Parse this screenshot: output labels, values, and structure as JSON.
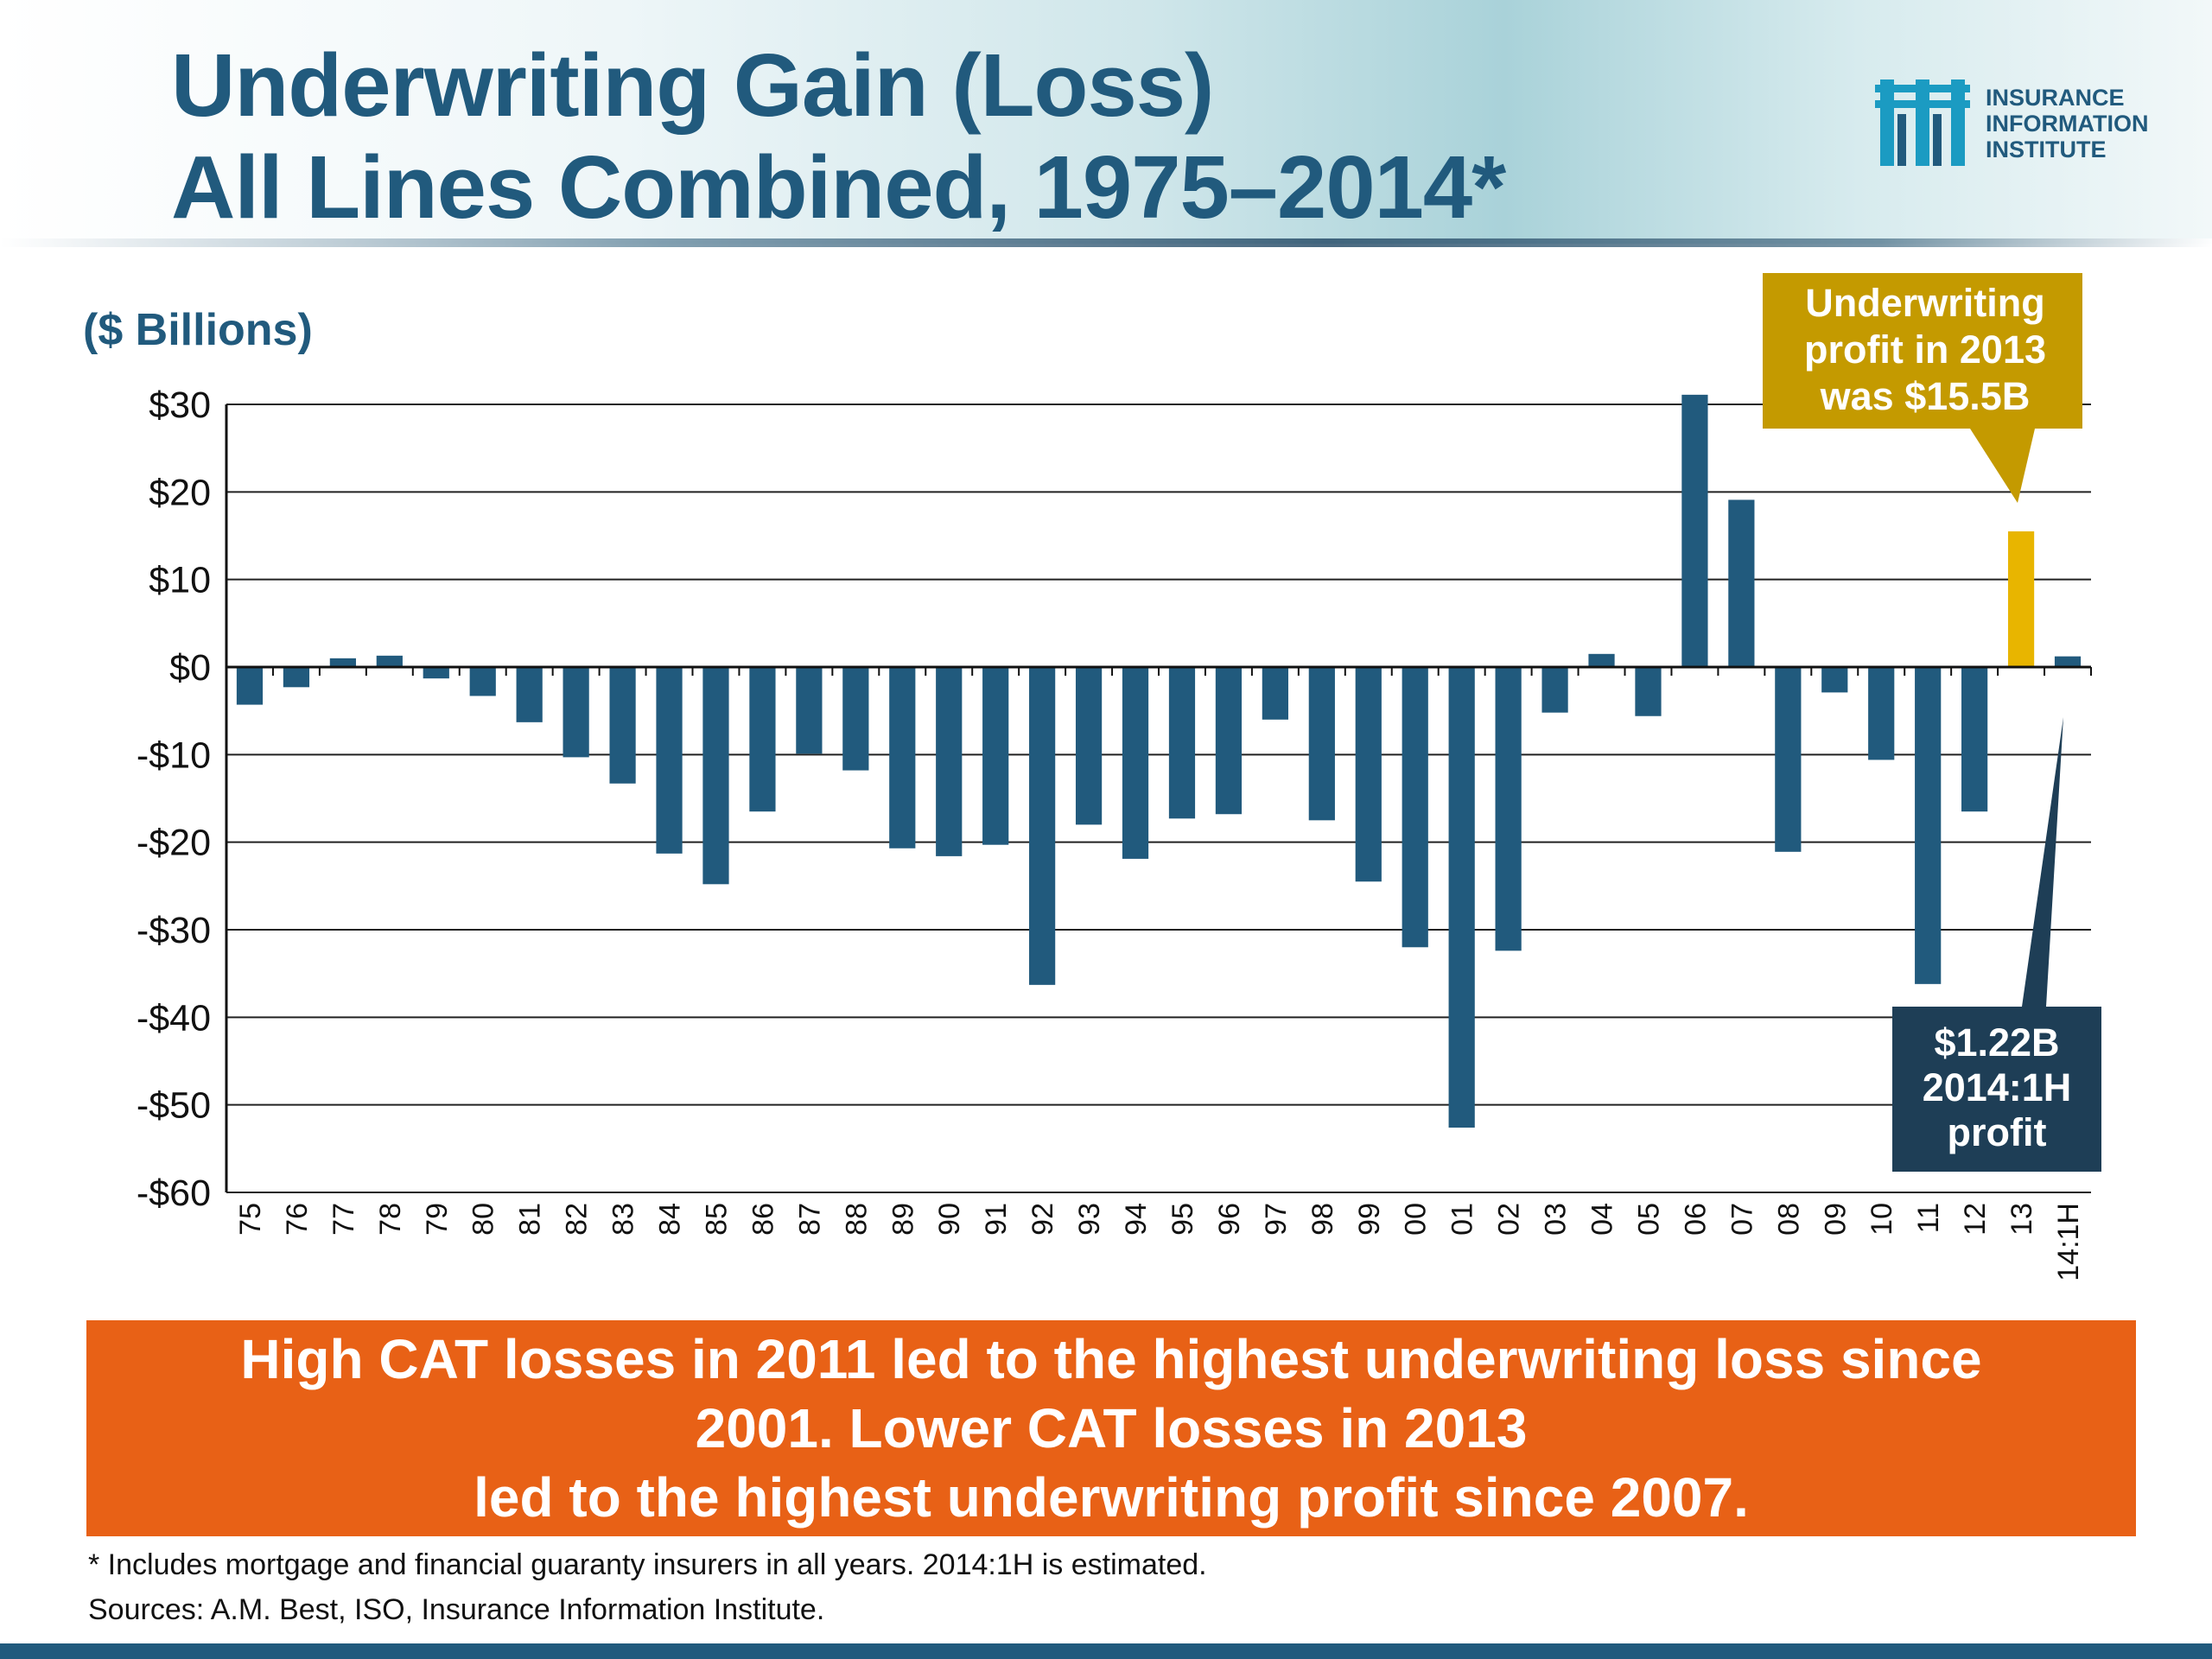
{
  "header": {
    "title_line1": "Underwriting Gain (Loss)",
    "title_line2": "All Lines Combined, 1975–2014*",
    "logo_line1": "INSURANCE",
    "logo_line2": "INFORMATION",
    "logo_line3": "INSTITUTE",
    "logo_icon": "iii-logo-icon"
  },
  "chart_data": {
    "type": "bar",
    "ylabel": "($ Billions)",
    "ylim": [
      -60,
      30
    ],
    "yticks": [
      30,
      20,
      10,
      0,
      -10,
      -20,
      -30,
      -40,
      -50,
      -60
    ],
    "ytick_labels": [
      "$30",
      "$20",
      "$10",
      "$0",
      "-$10",
      "-$20",
      "-$30",
      "-$40",
      "-$50",
      "-$60"
    ],
    "grid": true,
    "categories": [
      "75",
      "76",
      "77",
      "78",
      "79",
      "80",
      "81",
      "82",
      "83",
      "84",
      "85",
      "86",
      "87",
      "88",
      "89",
      "90",
      "91",
      "92",
      "93",
      "94",
      "95",
      "96",
      "97",
      "98",
      "99",
      "00",
      "01",
      "02",
      "03",
      "04",
      "05",
      "06",
      "07",
      "08",
      "09",
      "10",
      "11",
      "12",
      "13",
      "14:1H"
    ],
    "values": [
      -4.3,
      -2.3,
      1.0,
      1.3,
      -1.3,
      -3.3,
      -6.3,
      -10.3,
      -13.3,
      -21.3,
      -24.8,
      -16.5,
      -9.9,
      -11.8,
      -20.7,
      -21.6,
      -20.3,
      -36.3,
      -18.0,
      -21.9,
      -17.3,
      -16.8,
      -6.0,
      -17.5,
      -24.5,
      -32.0,
      -52.6,
      -32.4,
      -5.2,
      1.5,
      -5.6,
      31.1,
      19.1,
      -21.1,
      -2.9,
      -10.6,
      -36.2,
      -16.5,
      15.5,
      1.22
    ],
    "series_colors": {
      "default": "#215a7d",
      "highlight_2013": "#e8b500"
    },
    "annotations": [
      {
        "text_lines": [
          "Underwriting",
          "profit in 2013",
          "was $15.5B"
        ],
        "color": "#c49a00",
        "target": "13"
      },
      {
        "text_lines": [
          "$1.22B",
          "2014:1H",
          "profit"
        ],
        "color": "#1e3e56",
        "target": "14:1H"
      }
    ]
  },
  "banner": {
    "line1": "High CAT losses in 2011 led to the highest underwriting loss since",
    "line2": "2001. Lower CAT losses in 2013",
    "line3": "led to the highest underwriting profit since 2007."
  },
  "footnotes": {
    "note": "* Includes mortgage and financial guaranty insurers in all years. 2014:1H is estimated.",
    "sources": "Sources: A.M. Best, ISO, Insurance Information Institute."
  }
}
